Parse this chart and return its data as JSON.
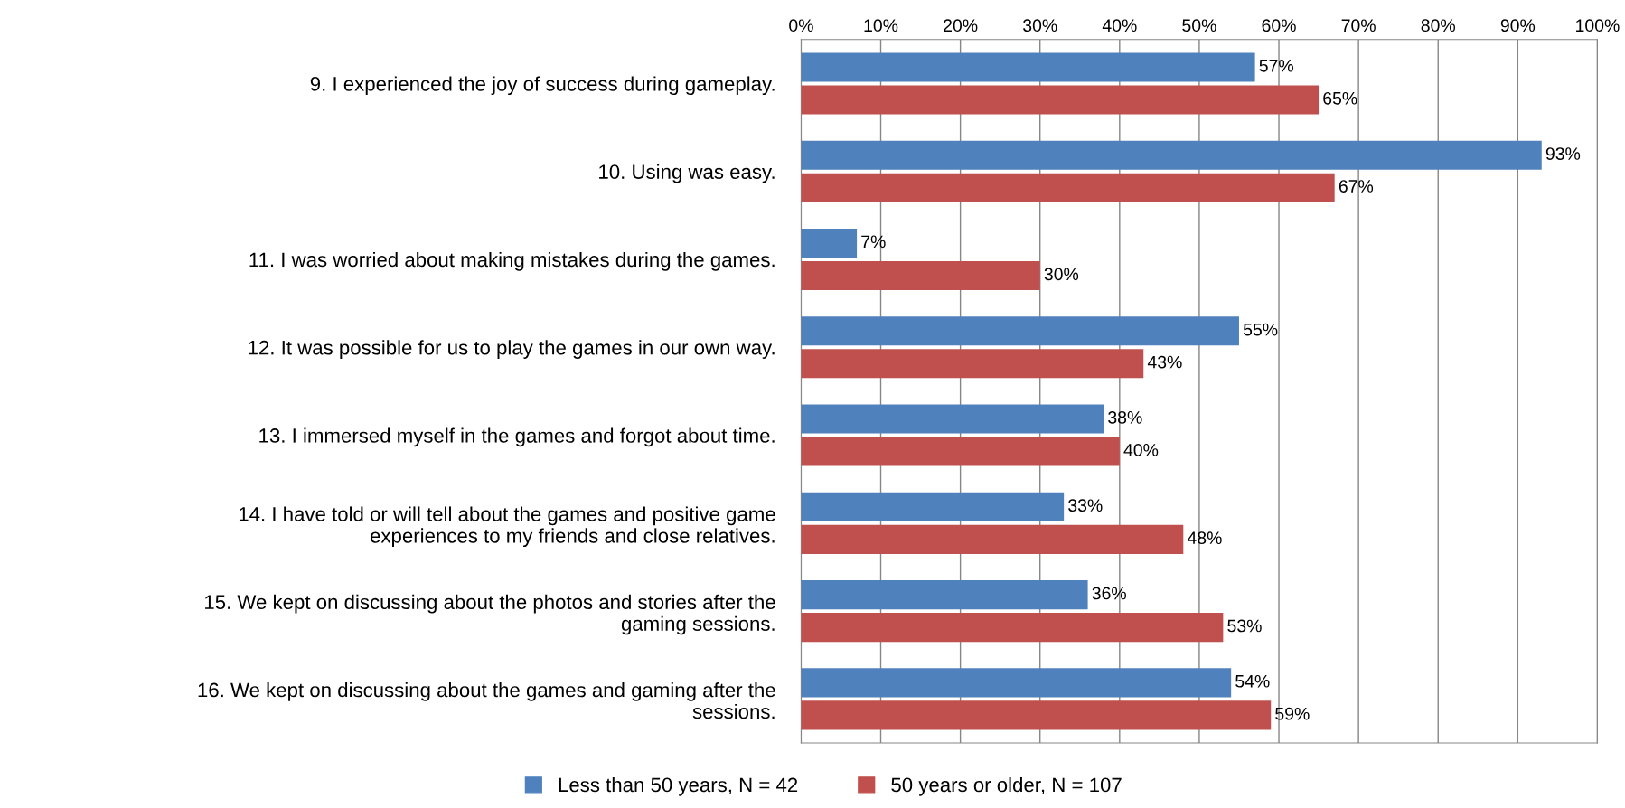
{
  "chart_data": {
    "type": "bar",
    "orientation": "horizontal",
    "categories": [
      "9. I experienced the joy of success during gameplay.",
      "10. Using was easy.",
      "11. I was worried about making mistakes during the games.",
      "12. It was possible for us to play the games in our own way.",
      "13. I immersed myself in the games and forgot about time.",
      "14. I have told or will tell about the games and positive game\nexperiences to my friends and close relatives.",
      "15. We kept on discussing about the photos and stories after the\ngaming sessions.",
      "16. We kept on discussing about the games and gaming after the\nsessions."
    ],
    "series": [
      {
        "name": "Less than 50 years, N = 42",
        "color": "#4f81bd",
        "values": [
          57,
          93,
          7,
          55,
          38,
          33,
          36,
          54
        ],
        "value_labels": [
          "57%",
          "93%",
          "7%",
          "55%",
          "38%",
          "33%",
          "36%",
          "54%"
        ]
      },
      {
        "name": "50 years or older, N = 107",
        "color": "#c0504d",
        "values": [
          65,
          67,
          30,
          43,
          40,
          48,
          53,
          59
        ],
        "value_labels": [
          "65%",
          "67%",
          "30%",
          "43%",
          "40%",
          "48%",
          "53%",
          "59%"
        ]
      }
    ],
    "xlim": [
      0,
      100
    ],
    "xticks": [
      {
        "value": 0,
        "label": "0%"
      },
      {
        "value": 10,
        "label": "10%"
      },
      {
        "value": 20,
        "label": "20%"
      },
      {
        "value": 30,
        "label": "30%"
      },
      {
        "value": 40,
        "label": "40%"
      },
      {
        "value": 50,
        "label": "50%"
      },
      {
        "value": 60,
        "label": "60%"
      },
      {
        "value": 70,
        "label": "70%"
      },
      {
        "value": 80,
        "label": "80%"
      },
      {
        "value": 90,
        "label": "90%"
      },
      {
        "value": 100,
        "label": "100%"
      }
    ],
    "grid": "x",
    "legend": "bottom"
  }
}
